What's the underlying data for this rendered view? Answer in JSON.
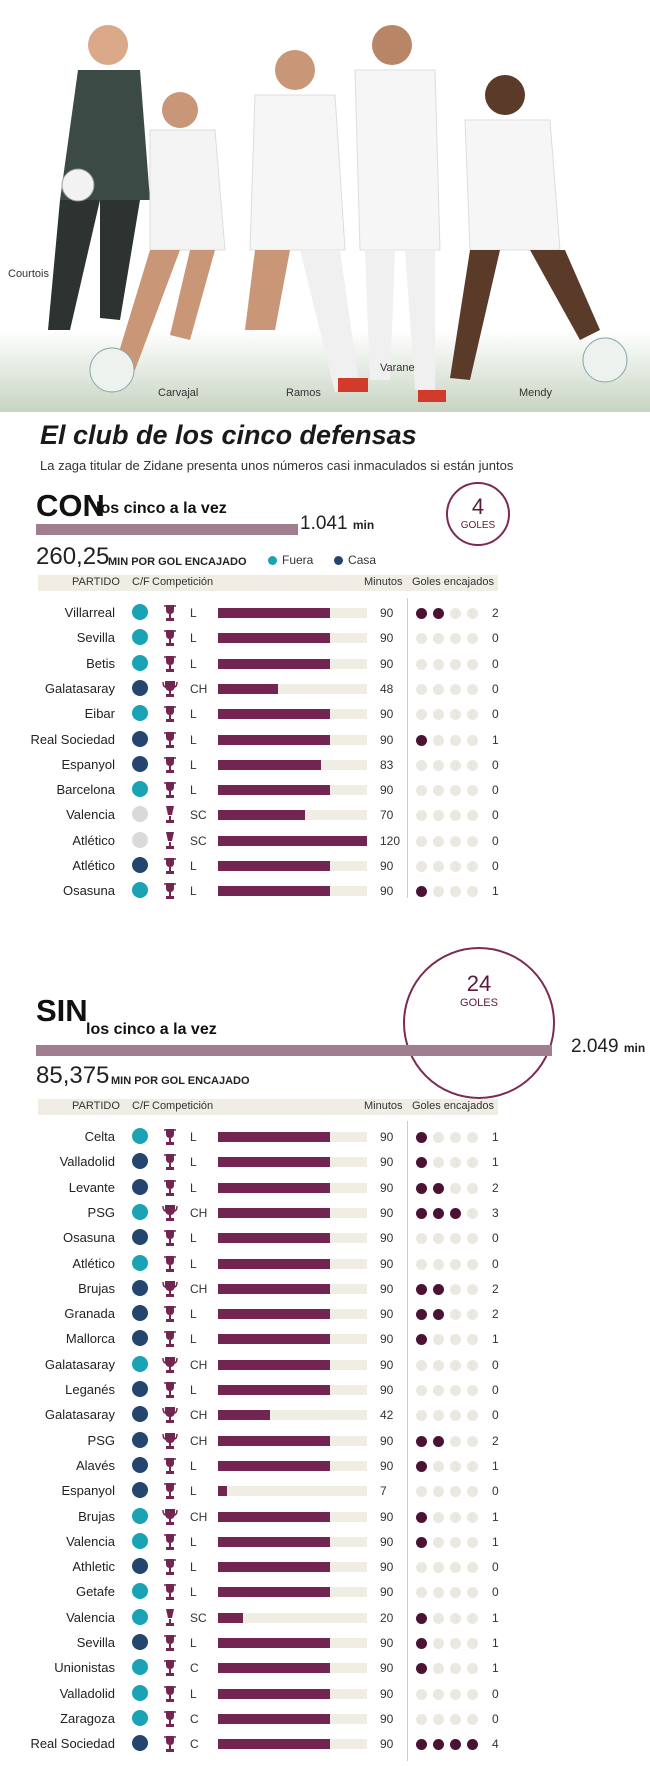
{
  "colors": {
    "fuera": "#1aa3b5",
    "casa": "#24456e",
    "neutral": "#d9d9d9",
    "bar": "#732551",
    "goal": "#4a1233",
    "empty": "#ebe8e1",
    "trophy": "#732551"
  },
  "hero": {
    "players": [
      "Courtois",
      "Carvajal",
      "Ramos",
      "Varane",
      "Mendy"
    ]
  },
  "title": "El club de los cinco defensas",
  "subtitle": "La zaga titular de Zidane presenta unos números casi inmaculados si están juntos",
  "headers": {
    "partido": "PARTIDO",
    "cf": "C/F",
    "competicion": "Competición",
    "minutos": "Minutos",
    "goles": "Goles encajados"
  },
  "legend": {
    "fuera": "Fuera",
    "casa": "Casa"
  },
  "con": {
    "big": "CON",
    "sub": "los cinco a la vez",
    "total_minutes": 1041,
    "total_label": "1.041",
    "min_unit": "min",
    "rate": "260,25",
    "rate_label": "MIN POR GOL ENCAJADO",
    "goals": "4",
    "goals_label": "GOLES"
  },
  "sin": {
    "big": "SIN",
    "sub": "los cinco a la vez",
    "total_minutes": 2049,
    "total_label": "2.049",
    "min_unit": "min",
    "rate": "85,375",
    "rate_label": "MIN POR GOL ENCAJADO",
    "goals": "24",
    "goals_label": "GOLES"
  },
  "chart_data": [
    {
      "type": "bar",
      "title": "CON los cinco a la vez",
      "max_minutes": 120,
      "categories": [
        "Villarreal",
        "Sevilla",
        "Betis",
        "Galatasaray",
        "Eibar",
        "Real Sociedad",
        "Espanyol",
        "Barcelona",
        "Valencia",
        "Atlético",
        "Atlético",
        "Osasuna"
      ],
      "venue": [
        "F",
        "F",
        "F",
        "C",
        "F",
        "C",
        "C",
        "F",
        "N",
        "N",
        "C",
        "F"
      ],
      "competition": [
        "L",
        "L",
        "L",
        "CH",
        "L",
        "L",
        "L",
        "L",
        "SC",
        "SC",
        "L",
        "L"
      ],
      "minutes": [
        90,
        90,
        90,
        48,
        90,
        90,
        83,
        90,
        70,
        120,
        90,
        90
      ],
      "goals": [
        2,
        0,
        0,
        0,
        0,
        1,
        0,
        0,
        0,
        0,
        0,
        1
      ]
    },
    {
      "type": "bar",
      "title": "SIN los cinco a la vez",
      "max_minutes": 120,
      "categories": [
        "Celta",
        "Valladolid",
        "Levante",
        "PSG",
        "Osasuna",
        "Atlético",
        "Brujas",
        "Granada",
        "Mallorca",
        "Galatasaray",
        "Leganés",
        "Galatasaray",
        "PSG",
        "Alavés",
        "Espanyol",
        "Brujas",
        "Valencia",
        "Athletic",
        "Getafe",
        "Valencia",
        "Sevilla",
        "Unionistas",
        "Valladolid",
        "Zaragoza",
        "Real Sociedad"
      ],
      "venue": [
        "F",
        "C",
        "C",
        "F",
        "C",
        "F",
        "C",
        "C",
        "C",
        "F",
        "C",
        "C",
        "C",
        "C",
        "C",
        "F",
        "F",
        "C",
        "F",
        "F",
        "C",
        "F",
        "F",
        "F",
        "C"
      ],
      "competition": [
        "L",
        "L",
        "L",
        "CH",
        "L",
        "L",
        "CH",
        "L",
        "L",
        "CH",
        "L",
        "CH",
        "CH",
        "L",
        "L",
        "CH",
        "L",
        "L",
        "L",
        "SC",
        "L",
        "C",
        "L",
        "C",
        "C"
      ],
      "minutes": [
        90,
        90,
        90,
        90,
        90,
        90,
        90,
        90,
        90,
        90,
        90,
        42,
        90,
        90,
        7,
        90,
        90,
        90,
        90,
        20,
        90,
        90,
        90,
        90,
        90
      ],
      "goals": [
        1,
        1,
        2,
        3,
        0,
        0,
        2,
        2,
        1,
        0,
        0,
        0,
        2,
        1,
        0,
        1,
        1,
        0,
        0,
        1,
        1,
        1,
        0,
        0,
        4
      ]
    }
  ]
}
